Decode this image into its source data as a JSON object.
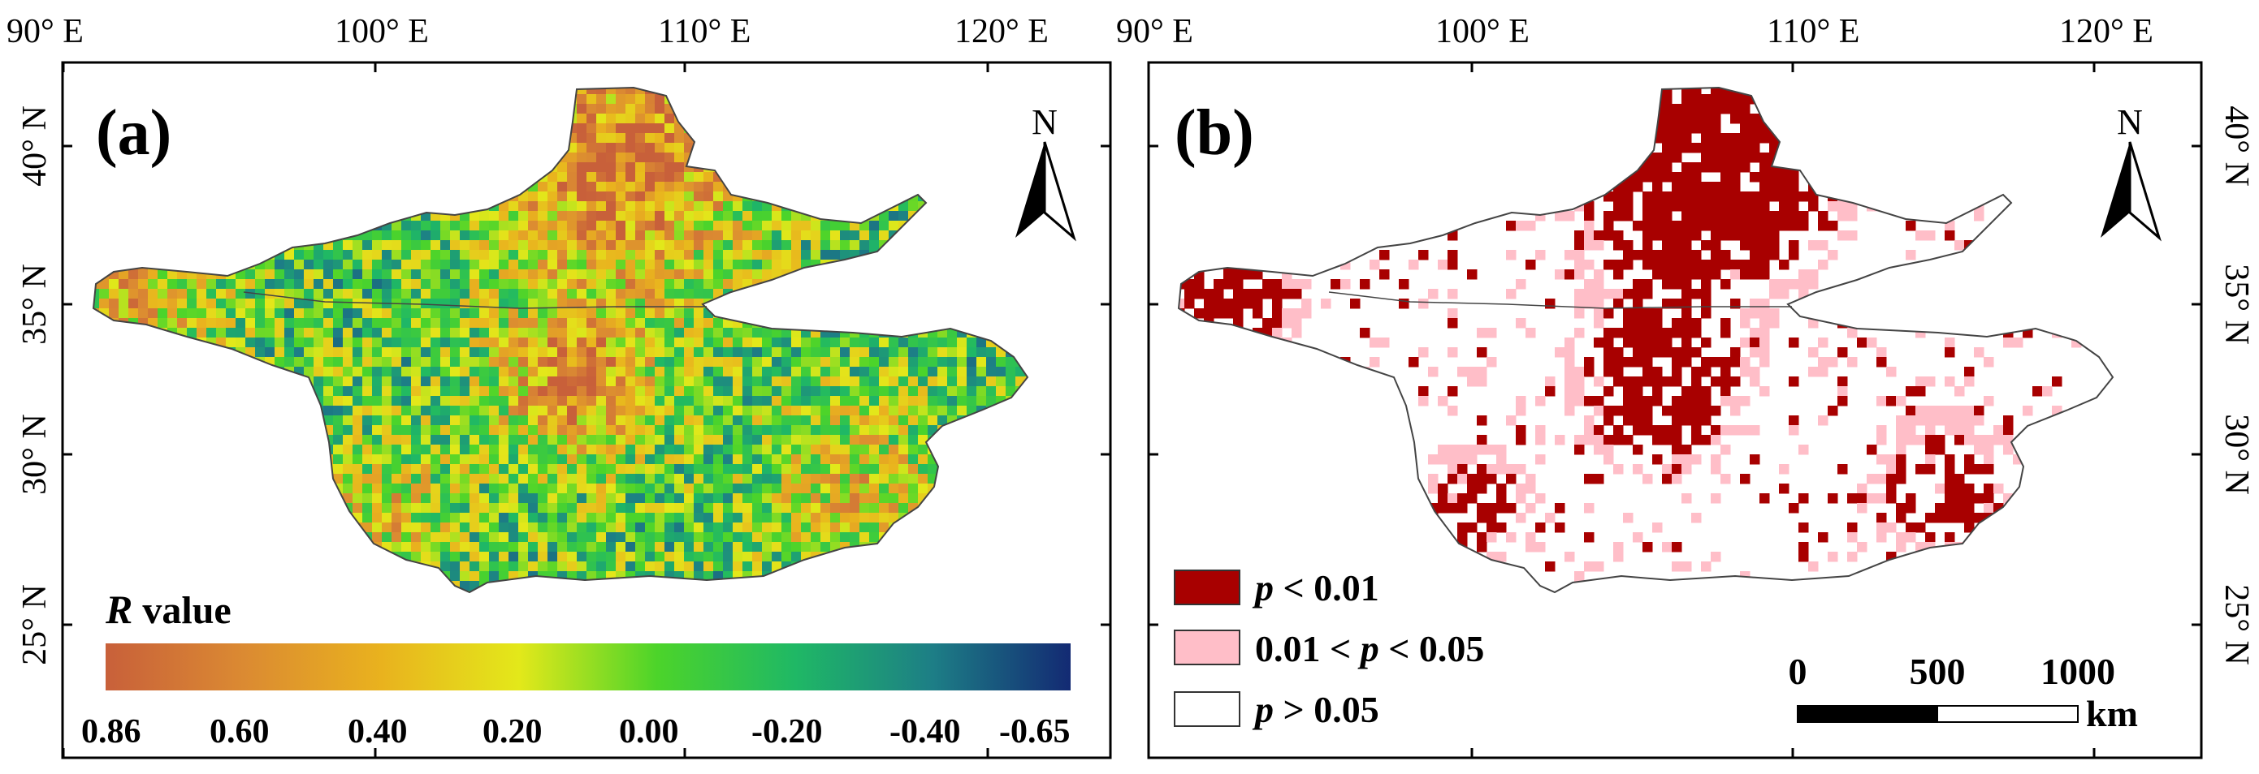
{
  "colors": {
    "frame": "#000000",
    "ramp": [
      "#c8603a",
      "#db8a32",
      "#e9b21e",
      "#e3e81a",
      "#4cd42a",
      "#1fb865",
      "#1d7e86",
      "#132a73"
    ],
    "p_lt_001": "#a80000",
    "p_001_005": "#ffbec8",
    "p_gt_005": "#ffffff",
    "basin_outline": "#444444"
  },
  "lon_labels": [
    "90° E",
    "100° E",
    "110° E",
    "120° E"
  ],
  "lat_labels": [
    "40° N",
    "35° N",
    "30° N",
    "25° N"
  ],
  "panel_a": {
    "label": "(a)",
    "north_arrow": {
      "icon": "north-arrow-icon",
      "letter": "N"
    },
    "legend_title_var": "R",
    "legend_title_rest": " value",
    "colorbar_ticks": [
      "0.86",
      "0.60",
      "0.40",
      "0.20",
      "0.00",
      "-0.20",
      "-0.40",
      "-0.65"
    ]
  },
  "panel_b": {
    "label": "(b)",
    "north_arrow": {
      "icon": "north-arrow-icon",
      "letter": "N"
    },
    "legend": [
      {
        "key": "p_lt_001",
        "pre": "",
        "var": "p",
        "post": " < 0.01"
      },
      {
        "key": "p_001_005",
        "pre": "0.01 < ",
        "var": "p",
        "post": " < 0.05"
      },
      {
        "key": "p_gt_005",
        "pre": "",
        "var": "p",
        "post": " > 0.05"
      }
    ],
    "scale_bar": {
      "ticks": [
        "0",
        "500",
        "1000"
      ],
      "unit": "km"
    }
  }
}
